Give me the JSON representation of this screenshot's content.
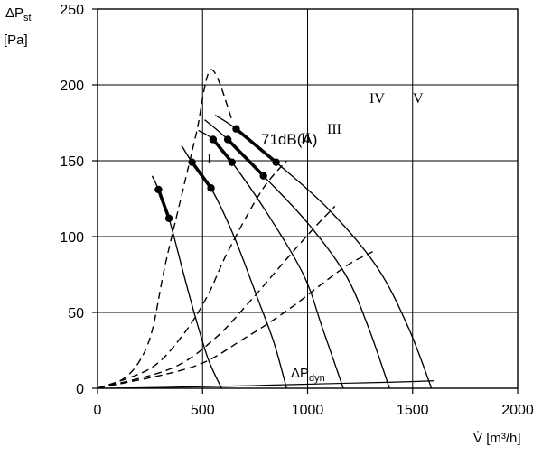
{
  "chart_data": {
    "type": "line",
    "title": "",
    "xlabel": {
      "symbol": "V̇",
      "unit": "[m³/h]"
    },
    "ylabel": {
      "symbol": "ΔP",
      "subscript": "st",
      "unit": "[Pa]"
    },
    "xlim": [
      0,
      2000
    ],
    "ylim": [
      0,
      250
    ],
    "xticks": [
      0,
      500,
      1000,
      1500,
      2000
    ],
    "yticks": [
      0,
      50,
      100,
      150,
      200,
      250
    ],
    "grid": true,
    "fan_curves": [
      {
        "name": "I",
        "label": "I",
        "points": [
          [
            260,
            140
          ],
          [
            290,
            131
          ],
          [
            340,
            112
          ],
          [
            420,
            70
          ],
          [
            480,
            40
          ],
          [
            530,
            18
          ],
          [
            590,
            0
          ]
        ]
      },
      {
        "name": "II",
        "label": "II",
        "points": [
          [
            400,
            160
          ],
          [
            450,
            149
          ],
          [
            540,
            132
          ],
          [
            650,
            100
          ],
          [
            760,
            60
          ],
          [
            840,
            30
          ],
          [
            900,
            0
          ]
        ]
      },
      {
        "name": "III",
        "label": "III",
        "points": [
          [
            480,
            170
          ],
          [
            550,
            164
          ],
          [
            640,
            149
          ],
          [
            800,
            117
          ],
          [
            980,
            75
          ],
          [
            1070,
            40
          ],
          [
            1170,
            0
          ]
        ]
      },
      {
        "name": "IV",
        "label": "IV",
        "points": [
          [
            510,
            177
          ],
          [
            620,
            164
          ],
          [
            790,
            140
          ],
          [
            1000,
            109
          ],
          [
            1180,
            75
          ],
          [
            1290,
            40
          ],
          [
            1390,
            0
          ]
        ]
      },
      {
        "name": "V",
        "label": "V",
        "points": [
          [
            560,
            180
          ],
          [
            660,
            171
          ],
          [
            850,
            149
          ],
          [
            1100,
            118
          ],
          [
            1330,
            80
          ],
          [
            1480,
            40
          ],
          [
            1590,
            0
          ]
        ]
      }
    ],
    "noise_segments": [
      {
        "curve": "I",
        "points": [
          [
            290,
            131
          ],
          [
            340,
            112
          ]
        ]
      },
      {
        "curve": "II",
        "points": [
          [
            450,
            149
          ],
          [
            540,
            132
          ]
        ]
      },
      {
        "curve": "III",
        "points": [
          [
            550,
            164
          ],
          [
            640,
            149
          ]
        ]
      },
      {
        "curve": "IV",
        "points": [
          [
            620,
            164
          ],
          [
            790,
            140
          ]
        ]
      },
      {
        "curve": "V",
        "points": [
          [
            660,
            171
          ],
          [
            850,
            149
          ]
        ]
      }
    ],
    "noise_markers": [
      [
        290,
        131
      ],
      [
        340,
        112
      ],
      [
        450,
        149
      ],
      [
        540,
        132
      ],
      [
        550,
        164
      ],
      [
        640,
        149
      ],
      [
        620,
        164
      ],
      [
        790,
        140
      ],
      [
        660,
        171
      ],
      [
        850,
        149
      ]
    ],
    "system_curves": [
      {
        "name": "system-curve-1",
        "points": [
          [
            0,
            0
          ],
          [
            120,
            6
          ],
          [
            200,
            18
          ],
          [
            260,
            38
          ],
          [
            320,
            80
          ],
          [
            400,
            127
          ],
          [
            470,
            168
          ],
          [
            540,
            210
          ],
          [
            640,
            177
          ]
        ]
      },
      {
        "name": "system-curve-2",
        "points": [
          [
            0,
            0
          ],
          [
            250,
            13
          ],
          [
            400,
            34
          ],
          [
            520,
            60
          ],
          [
            620,
            90
          ],
          [
            780,
            130
          ],
          [
            900,
            150
          ]
        ]
      },
      {
        "name": "system-curve-3",
        "points": [
          [
            0,
            0
          ],
          [
            350,
            13
          ],
          [
            560,
            33
          ],
          [
            730,
            58
          ],
          [
            880,
            82
          ],
          [
            1020,
            104
          ],
          [
            1130,
            120
          ]
        ]
      },
      {
        "name": "system-curve-4",
        "points": [
          [
            0,
            0
          ],
          [
            450,
            14
          ],
          [
            700,
            33
          ],
          [
            900,
            51
          ],
          [
            1080,
            70
          ],
          [
            1200,
            82
          ],
          [
            1310,
            90
          ]
        ]
      }
    ],
    "dynamic_pressure_curve": {
      "name": "ΔPdyn",
      "points": [
        [
          0,
          0
        ],
        [
          200,
          0.3
        ],
        [
          400,
          0.8
        ],
        [
          600,
          1.3
        ],
        [
          800,
          2.0
        ],
        [
          1000,
          2.7
        ],
        [
          1200,
          3.4
        ],
        [
          1400,
          4.0
        ],
        [
          1600,
          4.9
        ]
      ]
    },
    "annotations": {
      "noise": "71dB(A)",
      "dynamic_pressure": {
        "prefix": "ΔP",
        "subscript": "dyn"
      }
    }
  }
}
